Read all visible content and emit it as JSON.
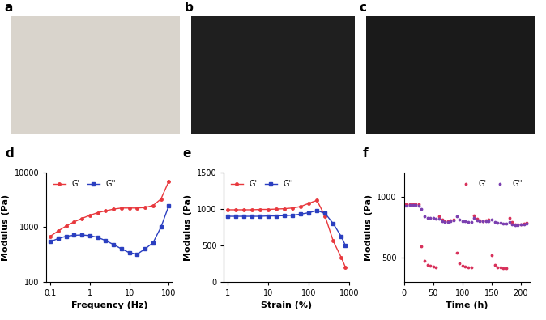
{
  "photo_panels": [
    {
      "panel": "a"
    },
    {
      "panel": "b"
    },
    {
      "panel": "c"
    }
  ],
  "chart_data": [
    {
      "panel": "d",
      "type": "line",
      "log": true,
      "x_label": "Frequency (Hz)",
      "y_label": "Modulus (Pa)",
      "x": [
        0.1,
        0.158,
        0.251,
        0.398,
        0.631,
        1,
        1.58,
        2.51,
        3.98,
        6.31,
        10,
        15.8,
        25.1,
        39.8,
        63.1,
        100
      ],
      "series": [
        {
          "name": "G'",
          "color": "#e8383d",
          "marker": "circle",
          "line_style": "solid",
          "values": [
            680,
            850,
            1050,
            1250,
            1450,
            1650,
            1850,
            2000,
            2150,
            2250,
            2250,
            2250,
            2300,
            2500,
            3300,
            7000
          ]
        },
        {
          "name": "G''",
          "color": "#2b3fc0",
          "marker": "square",
          "line_style": "solid",
          "values": [
            540,
            620,
            680,
            710,
            720,
            700,
            650,
            570,
            480,
            400,
            340,
            320,
            400,
            520,
            1000,
            2500
          ]
        }
      ],
      "xlim": [
        0.08,
        120
      ],
      "xticks": [
        0.1,
        1,
        10,
        100
      ],
      "ylim": [
        100,
        10000
      ],
      "yticks": [
        100,
        1000,
        10000
      ],
      "legend": "upper left"
    },
    {
      "panel": "e",
      "type": "line",
      "log": "x",
      "x_label": "Strain (%)",
      "y_label": "Modulus (Pa)",
      "x": [
        1,
        1.58,
        2.51,
        3.98,
        6.31,
        10,
        15.8,
        25.1,
        39.8,
        63.1,
        100,
        158,
        251,
        398,
        631,
        794
      ],
      "series": [
        {
          "name": "G'",
          "color": "#e8383d",
          "marker": "circle",
          "line_style": "solid",
          "values": [
            990,
            990,
            990,
            990,
            995,
            995,
            1000,
            1005,
            1015,
            1035,
            1080,
            1120,
            900,
            560,
            330,
            200
          ]
        },
        {
          "name": "G''",
          "color": "#2b3fc0",
          "marker": "square",
          "line_style": "solid",
          "values": [
            900,
            900,
            900,
            900,
            900,
            905,
            905,
            910,
            915,
            930,
            950,
            980,
            940,
            800,
            620,
            500
          ]
        }
      ],
      "xlim": [
        0.8,
        1000
      ],
      "xticks": [
        1,
        10,
        100,
        1000
      ],
      "ylim": [
        0,
        1500
      ],
      "yticks": [
        0,
        500,
        1000,
        1500
      ],
      "legend": "upper left"
    },
    {
      "panel": "f",
      "type": "scatter",
      "x_label": "Time (h)",
      "y_label": "Modulus (Pa)",
      "x": [
        0,
        5,
        10,
        15,
        20,
        25,
        30,
        35,
        40,
        45,
        50,
        55,
        60,
        65,
        70,
        75,
        80,
        85,
        90,
        95,
        100,
        105,
        110,
        115,
        120,
        125,
        130,
        135,
        140,
        145,
        150,
        155,
        160,
        165,
        170,
        175,
        180,
        185,
        190,
        195,
        200,
        205,
        210
      ],
      "series": [
        {
          "name": "G'",
          "color": "#d8315b",
          "marker": "dot",
          "line_style": "none",
          "values": [
            940,
            940,
            940,
            940,
            940,
            940,
            590,
            470,
            440,
            430,
            425,
            420,
            840,
            810,
            800,
            800,
            805,
            810,
            540,
            450,
            430,
            425,
            420,
            420,
            850,
            820,
            805,
            800,
            805,
            810,
            520,
            440,
            420,
            415,
            410,
            410,
            830,
            790,
            775,
            770,
            775,
            780,
            785
          ]
        },
        {
          "name": "G''",
          "color": "#7b3fb0",
          "marker": "dot",
          "line_style": "none",
          "values": [
            930,
            930,
            935,
            935,
            935,
            930,
            900,
            840,
            830,
            825,
            825,
            820,
            820,
            800,
            795,
            795,
            800,
            805,
            840,
            810,
            800,
            800,
            795,
            795,
            830,
            805,
            800,
            800,
            800,
            800,
            810,
            790,
            785,
            785,
            780,
            780,
            790,
            770,
            765,
            765,
            770,
            775,
            780
          ]
        }
      ],
      "xlim": [
        0,
        215
      ],
      "xticks": [
        0,
        50,
        100,
        150,
        200
      ],
      "ylim": [
        300,
        1200
      ],
      "yticks": [
        500,
        1000
      ],
      "legend": "upper right"
    }
  ]
}
